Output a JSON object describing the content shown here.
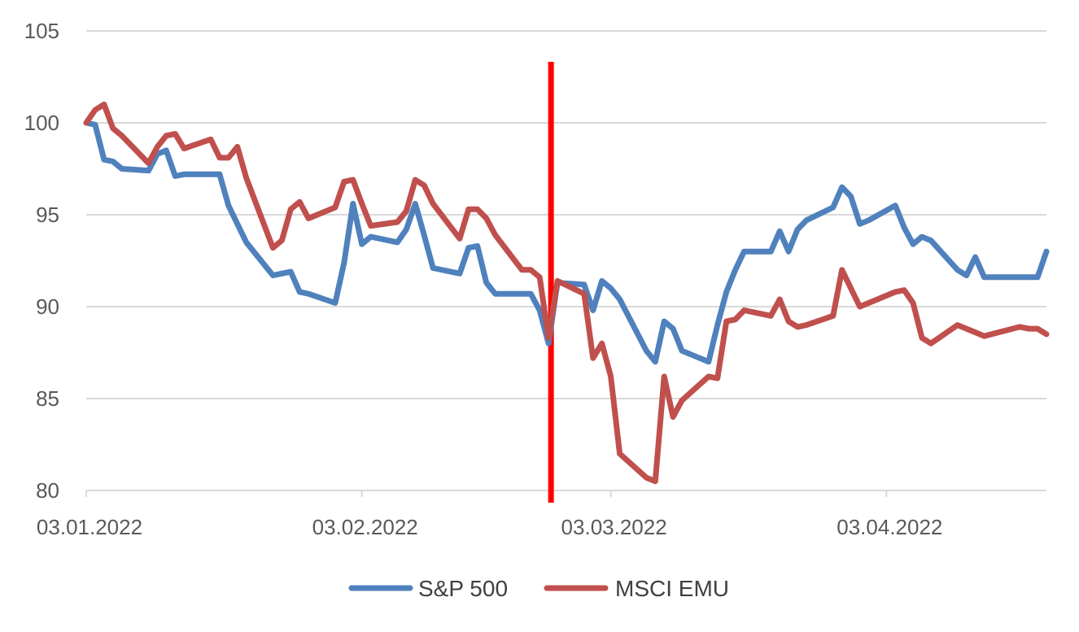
{
  "chart_data": {
    "type": "line",
    "x_type": "date",
    "ylim": [
      80,
      105
    ],
    "y_ticks": [
      80,
      85,
      90,
      95,
      100,
      105
    ],
    "x_range": [
      "2022-01-03",
      "2022-04-21"
    ],
    "x_ticks": [
      {
        "date": "2022-01-03",
        "label": "03.01.2022"
      },
      {
        "date": "2022-02-03",
        "label": "03.02.2022"
      },
      {
        "date": "2022-03-03",
        "label": "03.03.2022"
      },
      {
        "date": "2022-04-03",
        "label": "03.04.2022"
      }
    ],
    "grid": true,
    "legend_position": "bottom",
    "marker_line": {
      "date": "2022-02-24",
      "color": "#ff0000"
    },
    "series": [
      {
        "name": "S&P 500",
        "color": "#4f81bd",
        "points": [
          [
            "2022-01-03",
            100.0
          ],
          [
            "2022-01-04",
            99.9
          ],
          [
            "2022-01-05",
            98.0
          ],
          [
            "2022-01-06",
            97.9
          ],
          [
            "2022-01-07",
            97.5
          ],
          [
            "2022-01-10",
            97.4
          ],
          [
            "2022-01-11",
            98.3
          ],
          [
            "2022-01-12",
            98.5
          ],
          [
            "2022-01-13",
            97.1
          ],
          [
            "2022-01-14",
            97.2
          ],
          [
            "2022-01-18",
            97.2
          ],
          [
            "2022-01-19",
            95.5
          ],
          [
            "2022-01-20",
            94.5
          ],
          [
            "2022-01-21",
            93.5
          ],
          [
            "2022-01-24",
            91.7
          ],
          [
            "2022-01-25",
            91.8
          ],
          [
            "2022-01-26",
            91.9
          ],
          [
            "2022-01-27",
            90.8
          ],
          [
            "2022-01-28",
            90.7
          ],
          [
            "2022-01-31",
            90.2
          ],
          [
            "2022-02-01",
            92.4
          ],
          [
            "2022-02-02",
            95.6
          ],
          [
            "2022-02-03",
            93.4
          ],
          [
            "2022-02-04",
            93.8
          ],
          [
            "2022-02-07",
            93.5
          ],
          [
            "2022-02-08",
            94.2
          ],
          [
            "2022-02-09",
            95.6
          ],
          [
            "2022-02-10",
            93.9
          ],
          [
            "2022-02-11",
            92.1
          ],
          [
            "2022-02-14",
            91.8
          ],
          [
            "2022-02-15",
            93.2
          ],
          [
            "2022-02-16",
            93.3
          ],
          [
            "2022-02-17",
            91.3
          ],
          [
            "2022-02-18",
            90.7
          ],
          [
            "2022-02-22",
            90.7
          ],
          [
            "2022-02-23",
            89.8
          ],
          [
            "2022-02-24",
            88.0
          ],
          [
            "2022-02-25",
            91.3
          ],
          [
            "2022-02-28",
            91.2
          ],
          [
            "2022-03-01",
            89.8
          ],
          [
            "2022-03-02",
            91.4
          ],
          [
            "2022-03-03",
            91.0
          ],
          [
            "2022-03-04",
            90.4
          ],
          [
            "2022-03-07",
            87.6
          ],
          [
            "2022-03-08",
            87.0
          ],
          [
            "2022-03-09",
            89.2
          ],
          [
            "2022-03-10",
            88.8
          ],
          [
            "2022-03-11",
            87.6
          ],
          [
            "2022-03-14",
            87.0
          ],
          [
            "2022-03-15",
            89.0
          ],
          [
            "2022-03-16",
            90.8
          ],
          [
            "2022-03-17",
            92.0
          ],
          [
            "2022-03-18",
            93.0
          ],
          [
            "2022-03-21",
            93.0
          ],
          [
            "2022-03-22",
            94.1
          ],
          [
            "2022-03-23",
            93.0
          ],
          [
            "2022-03-24",
            94.2
          ],
          [
            "2022-03-25",
            94.7
          ],
          [
            "2022-03-28",
            95.4
          ],
          [
            "2022-03-29",
            96.5
          ],
          [
            "2022-03-30",
            96.0
          ],
          [
            "2022-03-31",
            94.5
          ],
          [
            "2022-04-01",
            94.7
          ],
          [
            "2022-04-04",
            95.5
          ],
          [
            "2022-04-05",
            94.3
          ],
          [
            "2022-04-06",
            93.4
          ],
          [
            "2022-04-07",
            93.8
          ],
          [
            "2022-04-08",
            93.6
          ],
          [
            "2022-04-11",
            92.0
          ],
          [
            "2022-04-12",
            91.7
          ],
          [
            "2022-04-13",
            92.7
          ],
          [
            "2022-04-14",
            91.6
          ],
          [
            "2022-04-18",
            91.6
          ],
          [
            "2022-04-19",
            91.6
          ],
          [
            "2022-04-20",
            91.6
          ],
          [
            "2022-04-21",
            93.0
          ]
        ]
      },
      {
        "name": "MSCI EMU",
        "color": "#c0504d",
        "points": [
          [
            "2022-01-03",
            100.0
          ],
          [
            "2022-01-04",
            100.7
          ],
          [
            "2022-01-05",
            101.0
          ],
          [
            "2022-01-06",
            99.7
          ],
          [
            "2022-01-07",
            99.3
          ],
          [
            "2022-01-10",
            97.8
          ],
          [
            "2022-01-11",
            98.7
          ],
          [
            "2022-01-12",
            99.3
          ],
          [
            "2022-01-13",
            99.4
          ],
          [
            "2022-01-14",
            98.6
          ],
          [
            "2022-01-17",
            99.1
          ],
          [
            "2022-01-18",
            98.1
          ],
          [
            "2022-01-19",
            98.1
          ],
          [
            "2022-01-20",
            98.7
          ],
          [
            "2022-01-21",
            97.0
          ],
          [
            "2022-01-24",
            93.2
          ],
          [
            "2022-01-25",
            93.6
          ],
          [
            "2022-01-26",
            95.3
          ],
          [
            "2022-01-27",
            95.7
          ],
          [
            "2022-01-28",
            94.8
          ],
          [
            "2022-01-31",
            95.4
          ],
          [
            "2022-02-01",
            96.8
          ],
          [
            "2022-02-02",
            96.9
          ],
          [
            "2022-02-03",
            95.6
          ],
          [
            "2022-02-04",
            94.4
          ],
          [
            "2022-02-07",
            94.6
          ],
          [
            "2022-02-08",
            95.2
          ],
          [
            "2022-02-09",
            96.9
          ],
          [
            "2022-02-10",
            96.6
          ],
          [
            "2022-02-11",
            95.6
          ],
          [
            "2022-02-14",
            93.7
          ],
          [
            "2022-02-15",
            95.3
          ],
          [
            "2022-02-16",
            95.3
          ],
          [
            "2022-02-17",
            94.8
          ],
          [
            "2022-02-18",
            93.9
          ],
          [
            "2022-02-21",
            92.0
          ],
          [
            "2022-02-22",
            92.0
          ],
          [
            "2022-02-23",
            91.6
          ],
          [
            "2022-02-24",
            88.3
          ],
          [
            "2022-02-25",
            91.4
          ],
          [
            "2022-02-28",
            90.7
          ],
          [
            "2022-03-01",
            87.2
          ],
          [
            "2022-03-02",
            88.0
          ],
          [
            "2022-03-03",
            86.2
          ],
          [
            "2022-03-04",
            82.0
          ],
          [
            "2022-03-07",
            80.7
          ],
          [
            "2022-03-08",
            80.5
          ],
          [
            "2022-03-09",
            86.2
          ],
          [
            "2022-03-10",
            84.0
          ],
          [
            "2022-03-11",
            84.9
          ],
          [
            "2022-03-14",
            86.2
          ],
          [
            "2022-03-15",
            86.1
          ],
          [
            "2022-03-16",
            89.2
          ],
          [
            "2022-03-17",
            89.3
          ],
          [
            "2022-03-18",
            89.8
          ],
          [
            "2022-03-21",
            89.5
          ],
          [
            "2022-03-22",
            90.4
          ],
          [
            "2022-03-23",
            89.2
          ],
          [
            "2022-03-24",
            88.9
          ],
          [
            "2022-03-25",
            89.0
          ],
          [
            "2022-03-28",
            89.5
          ],
          [
            "2022-03-29",
            92.0
          ],
          [
            "2022-03-30",
            91.0
          ],
          [
            "2022-03-31",
            90.0
          ],
          [
            "2022-04-01",
            90.2
          ],
          [
            "2022-04-04",
            90.8
          ],
          [
            "2022-04-05",
            90.9
          ],
          [
            "2022-04-06",
            90.2
          ],
          [
            "2022-04-07",
            88.3
          ],
          [
            "2022-04-08",
            88.0
          ],
          [
            "2022-04-11",
            89.0
          ],
          [
            "2022-04-12",
            88.8
          ],
          [
            "2022-04-13",
            88.6
          ],
          [
            "2022-04-14",
            88.4
          ],
          [
            "2022-04-18",
            88.9
          ],
          [
            "2022-04-19",
            88.8
          ],
          [
            "2022-04-20",
            88.8
          ],
          [
            "2022-04-21",
            88.5
          ]
        ]
      }
    ]
  }
}
